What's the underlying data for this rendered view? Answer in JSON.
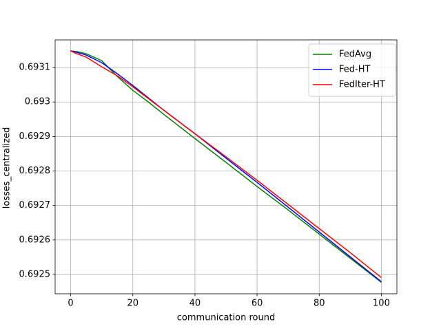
{
  "chart_data": {
    "type": "line",
    "xlabel": "communication round",
    "ylabel": "losses_centralized",
    "x": [
      0,
      2,
      5,
      10,
      15,
      20,
      25,
      30,
      40,
      50,
      60,
      70,
      80,
      90,
      100
    ],
    "series": [
      {
        "name": "FedAvg",
        "color": "#008000",
        "values": [
          0.693148,
          0.693146,
          0.69314,
          0.69312,
          0.693074,
          0.693034,
          0.693,
          0.692964,
          0.692894,
          0.692825,
          0.692755,
          0.692687,
          0.692617,
          0.692547,
          0.692477
        ]
      },
      {
        "name": "Fed-HT",
        "color": "#0000ff",
        "values": [
          0.693148,
          0.693144,
          0.693136,
          0.693114,
          0.693082,
          0.693048,
          0.693012,
          0.692976,
          0.692908,
          0.692837,
          0.692767,
          0.692695,
          0.692623,
          0.692551,
          0.692479
        ]
      },
      {
        "name": "FedIter-HT",
        "color": "#ff0000",
        "values": [
          0.693148,
          0.69314,
          0.69313,
          0.693102,
          0.693076,
          0.693044,
          0.69301,
          0.692976,
          0.692908,
          0.692841,
          0.692773,
          0.692703,
          0.692633,
          0.692563,
          0.692491
        ]
      }
    ],
    "xlim": [
      -5,
      105
    ],
    "xticks": [
      0,
      20,
      40,
      60,
      80,
      100
    ],
    "ylim": [
      0.692444,
      0.69318
    ],
    "yticks": [
      0.6925,
      0.6926,
      0.6927,
      0.6928,
      0.6929,
      0.693,
      0.6931
    ],
    "grid": true,
    "legend": "upper right"
  }
}
